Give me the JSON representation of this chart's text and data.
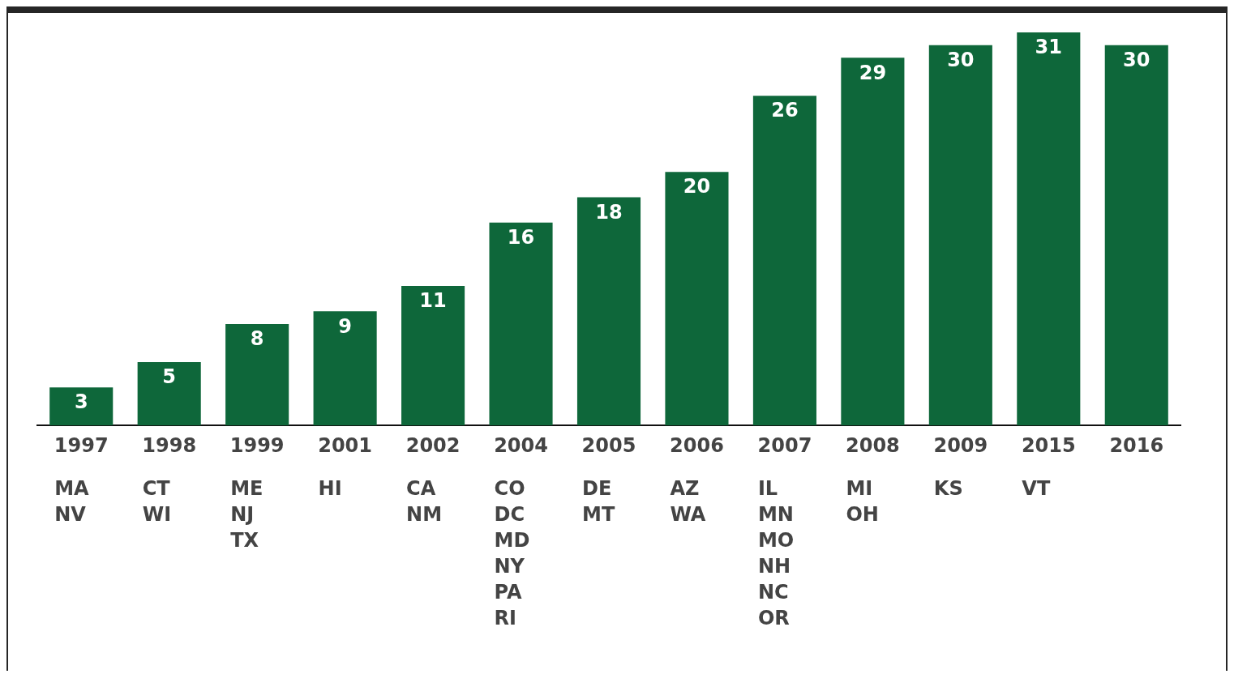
{
  "chart_data": {
    "type": "bar",
    "categories": [
      "1997",
      "1998",
      "1999",
      "2001",
      "2002",
      "2004",
      "2005",
      "2006",
      "2007",
      "2008",
      "2009",
      "2015",
      "2016"
    ],
    "values": [
      3,
      5,
      8,
      9,
      11,
      16,
      18,
      20,
      26,
      29,
      30,
      31,
      30
    ],
    "color": "#0e673a",
    "data_labels": true,
    "relative": false,
    "grid": false,
    "legend": false,
    "annotations": [
      "MA\nNV",
      "CT\nWI",
      "ME\nNJ\nTX",
      "HI",
      "CA\nNM",
      "CO\nDC\nMD\nNY\nPA\nRI",
      "DE\nMT",
      "AZ\nWA",
      "IL\nMN\nMO\nNH\nNC\nOR",
      "MI\nOH",
      "KS",
      "VT"
    ]
  }
}
